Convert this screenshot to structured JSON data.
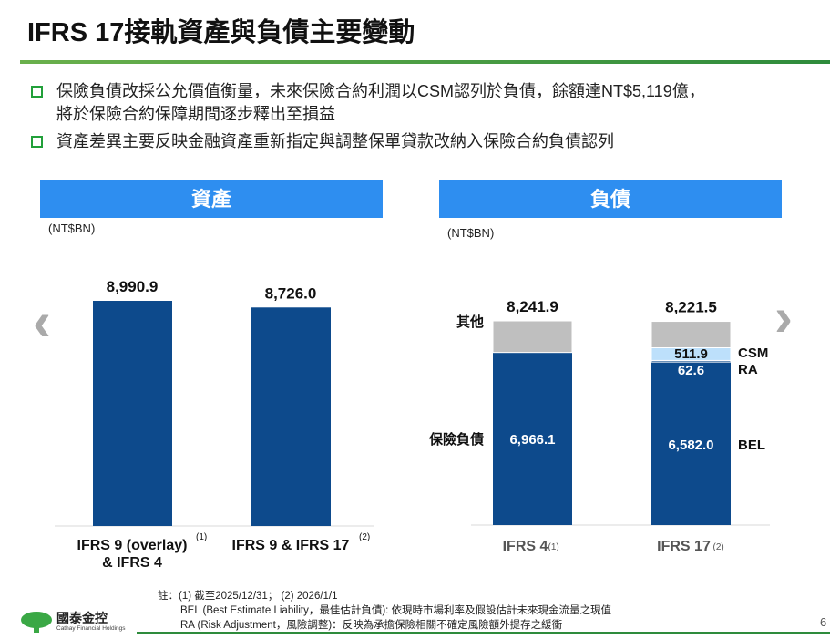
{
  "title": "IFRS 17接軌資產與負債主要變動",
  "bullets": [
    {
      "line1": "保險負債改採公允價值衡量，未來保險合約利潤以CSM認列於負債，餘額達NT$5,119億，",
      "line2": "將於保險合約保障期間逐步釋出至損益"
    },
    {
      "line1": "資產差異主要反映金融資產重新指定與調整保單貸款改納入保險合約負債認列"
    }
  ],
  "panels": {
    "assets_header": "資產",
    "liabilities_header": "負債",
    "unit": "(NT$BN)"
  },
  "colors": {
    "bar_blue": "#0d4a8c",
    "other_gray": "#bfbfbf",
    "csm_light": "#bde0fb",
    "header_blue": "#2e8ef0",
    "green": "#22a03a"
  },
  "chart_data": [
    {
      "type": "bar",
      "title": "資產",
      "ylabel": "(NT$BN)",
      "ylim": [
        0,
        9000
      ],
      "categories": [
        {
          "label": "IFRS 9 (overlay)\n& IFRS 4",
          "sup": "(1)"
        },
        {
          "label": "IFRS 9 & IFRS 17",
          "sup": "(2)"
        }
      ],
      "category_labels": [
        "IFRS 9 (overlay)",
        "& IFRS 4",
        "IFRS 9 & IFRS 17"
      ],
      "sups": [
        "(1)",
        "(2)"
      ],
      "values": [
        8990.9,
        8726.0
      ],
      "value_labels": [
        "8,990.9",
        "8,726.0"
      ]
    },
    {
      "type": "bar",
      "stacked": true,
      "title": "負債",
      "ylabel": "(NT$BN)",
      "ylim": [
        0,
        9000
      ],
      "categories": [
        "IFRS 4",
        "IFRS 17"
      ],
      "sups": [
        "(1)",
        "(2)"
      ],
      "totals": [
        8241.9,
        8221.5
      ],
      "total_labels": [
        "8,241.9",
        "8,221.5"
      ],
      "series": [
        {
          "name": "BEL",
          "values": [
            6966.1,
            6582.0
          ],
          "labels": [
            "6,966.1",
            "6,582.0"
          ]
        },
        {
          "name": "RA",
          "values": [
            0,
            62.6
          ],
          "labels": [
            "",
            "62.6"
          ]
        },
        {
          "name": "CSM",
          "values": [
            0,
            511.9
          ],
          "labels": [
            "",
            "511.9"
          ]
        },
        {
          "name": "其他",
          "values": [
            1275.8,
            1065.0
          ]
        }
      ],
      "left_labels": [
        "其他",
        "保險負債"
      ],
      "right_labels": [
        "CSM",
        "RA",
        "BEL"
      ]
    }
  ],
  "notes": [
    "註：(1) 截至2025/12/31； (2) 2026/1/1",
    "BEL (Best Estimate Liability，最佳估計負債): 依現時市場利率及假設估計未來現金流量之現值",
    "RA (Risk Adjustment，風險調整)：反映為承擔保險相關不確定風險額外提存之緩衝"
  ],
  "logo": {
    "name": "國泰金控",
    "sub": "Cathay Financial Holdings"
  },
  "page_number": "6"
}
